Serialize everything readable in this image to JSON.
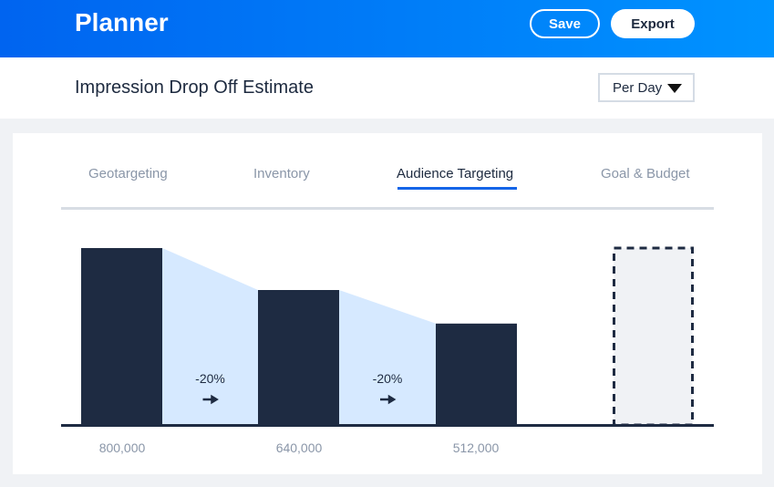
{
  "header": {
    "title": "Planner",
    "save_label": "Save",
    "export_label": "Export"
  },
  "subheader": {
    "title": "Impression Drop Off Estimate",
    "period_select": "Per Day"
  },
  "tabs": [
    {
      "label": "Geotargeting"
    },
    {
      "label": "Inventory"
    },
    {
      "label": "Audience Targeting",
      "active": true
    },
    {
      "label": "Goal & Budget"
    }
  ],
  "colors": {
    "bar": "#1e2b42",
    "drop_fill": "#d6e9ff",
    "accent": "#1565e8"
  },
  "chart_data": {
    "type": "bar",
    "categories": [
      "800,000",
      "640,000",
      "512,000",
      ""
    ],
    "values": [
      800000,
      640000,
      512000,
      null
    ],
    "drops": [
      "-20%",
      "-20%"
    ],
    "placeholder_last": true
  }
}
